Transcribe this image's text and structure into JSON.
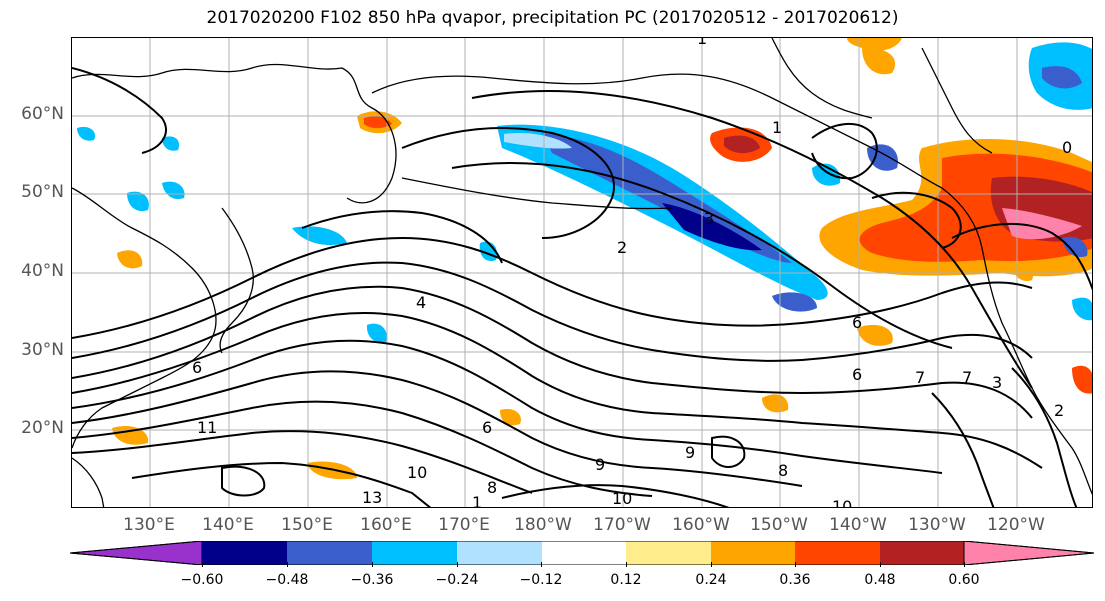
{
  "title": "2017020200 F102 850 hPa qvapor, precipitation PC (2017020512 - 2017020612)",
  "lat_labels": [
    "60°N",
    "50°N",
    "40°N",
    "30°N",
    "20°N"
  ],
  "lon_labels": [
    "130°E",
    "140°E",
    "150°E",
    "160°E",
    "170°E",
    "180°W",
    "170°W",
    "160°W",
    "150°W",
    "140°W",
    "130°W",
    "120°W"
  ],
  "colorbar": {
    "ticks": [
      "−0.60",
      "−0.48",
      "−0.36",
      "−0.24",
      "−0.12",
      "0.12",
      "0.24",
      "0.36",
      "0.48",
      "0.60"
    ],
    "colors": [
      "#9932cc",
      "#00008b",
      "#3a5fcd",
      "#00bfff",
      "#b0e2ff",
      "#ffffff",
      "#ffec8b",
      "#ffa500",
      "#ff4500",
      "#b22222",
      "#ff82ab"
    ]
  },
  "contour_labels": [
    "1",
    "1",
    "2",
    "3",
    "4",
    "6",
    "6",
    "6",
    "7",
    "8",
    "9",
    "9",
    "10",
    "10",
    "10",
    "11",
    "13",
    "1",
    "3",
    "2",
    "0",
    "8",
    "7",
    "6"
  ],
  "colors": {
    "text_axis": "#555555",
    "contour": "#000000",
    "grid": "#b0b0b0"
  }
}
